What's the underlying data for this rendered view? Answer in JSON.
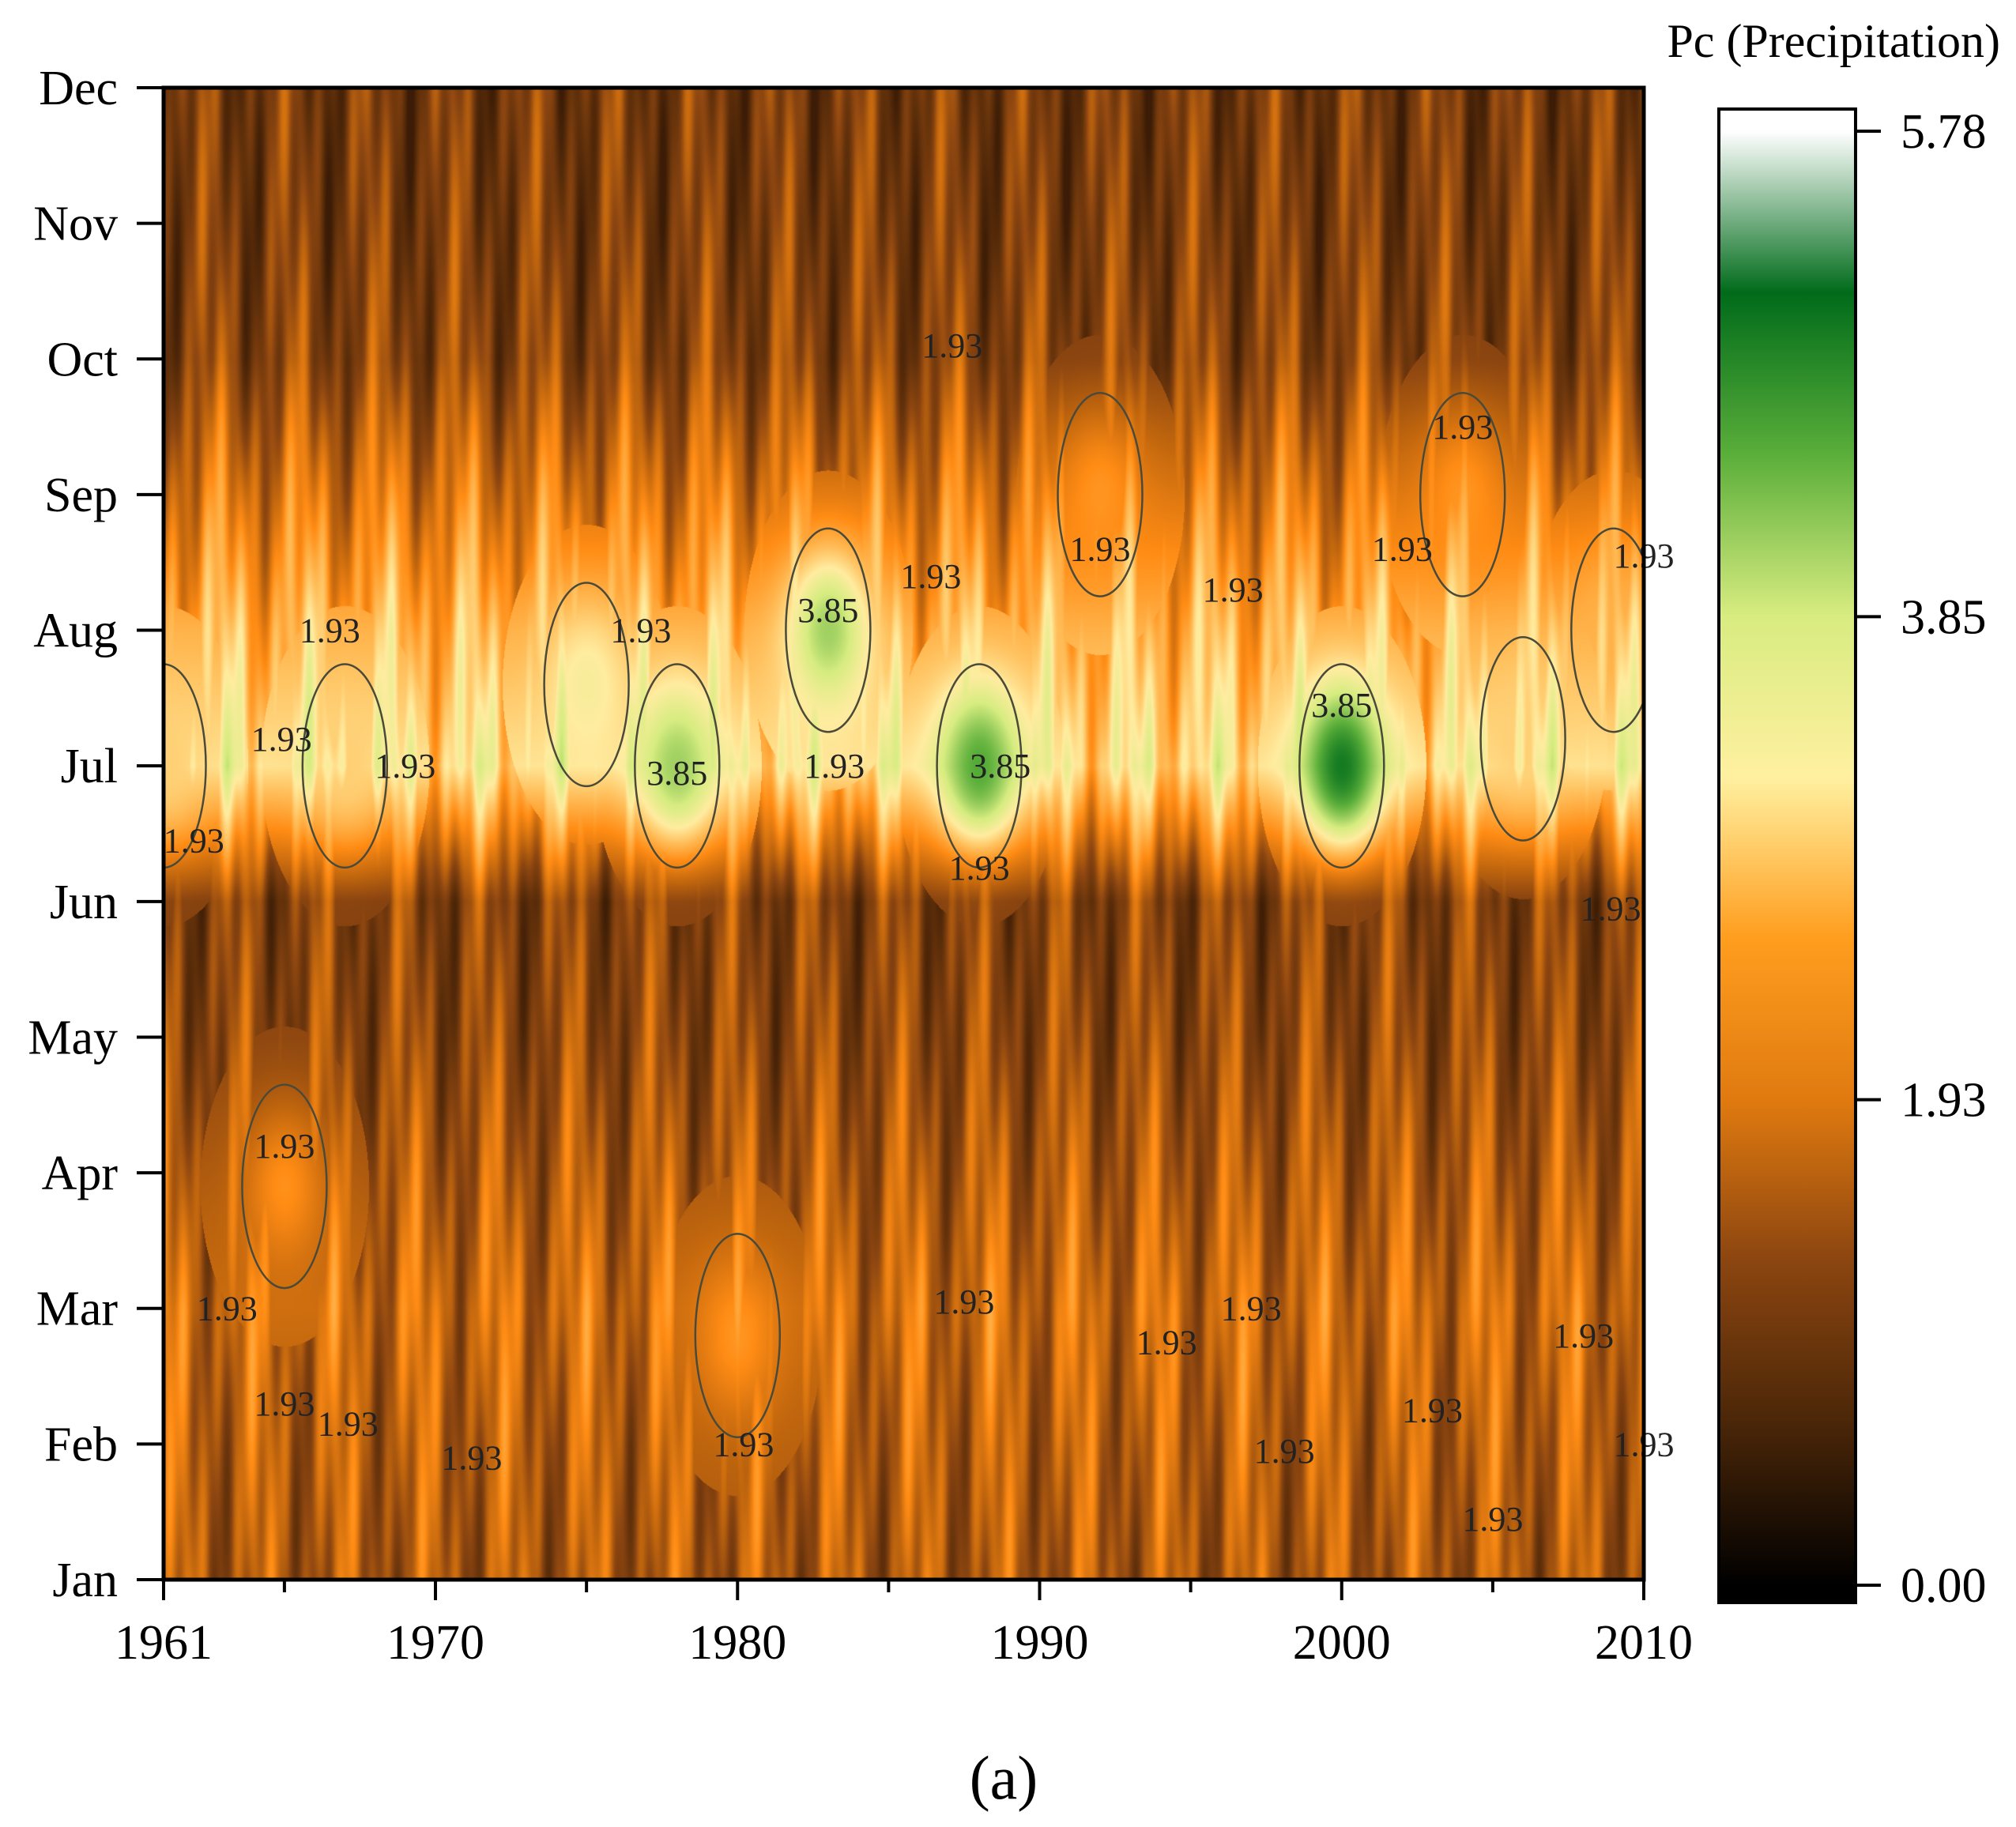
{
  "chart_data": {
    "type": "heatmap",
    "title": "",
    "xlabel": "",
    "ylabel": "",
    "panel_label": "(a)",
    "x_range": [
      1961,
      2010
    ],
    "x_ticks": [
      "1961",
      "1970",
      "1980",
      "1990",
      "2000",
      "2010"
    ],
    "y_ticks": [
      "Jan",
      "Feb",
      "Mar",
      "Apr",
      "May",
      "Jun",
      "Jul",
      "Aug",
      "Sep",
      "Oct",
      "Nov",
      "Dec"
    ],
    "colorbar": {
      "title": "Pc (Precipitation)",
      "min": 0.0,
      "max": 5.78,
      "ticks": [
        "0.00",
        "1.93",
        "3.85",
        "5.78"
      ],
      "colors": [
        "#000000",
        "#4a2608",
        "#8b4510",
        "#e07a10",
        "#ff9d1e",
        "#fff0a0",
        "#d8ec80",
        "#5aae3a",
        "#006b1a",
        "#ffffff"
      ]
    },
    "contour_levels": [
      1.93,
      3.85
    ],
    "monthly_profile": [
      1.2,
      1.3,
      1.45,
      1.2,
      0.95,
      0.85,
      2.8,
      2.3,
      1.6,
      0.9,
      0.75,
      0.7
    ],
    "hotspots": [
      {
        "year": 1978,
        "month": 7,
        "value": 3.85
      },
      {
        "year": 1983,
        "month": 8,
        "value": 3.85
      },
      {
        "year": 1988,
        "month": 7,
        "value": 4.4
      },
      {
        "year": 2000,
        "month": 7,
        "value": 5.0
      },
      {
        "year": 1975,
        "month": 7.6,
        "value": 3.0
      },
      {
        "year": 1961,
        "month": 7,
        "value": 2.6
      },
      {
        "year": 1967,
        "month": 7,
        "value": 2.6
      },
      {
        "year": 1980,
        "month": 2.8,
        "value": 2.0
      },
      {
        "year": 1965,
        "month": 3.9,
        "value": 1.95
      },
      {
        "year": 1992,
        "month": 9,
        "value": 2.0
      },
      {
        "year": 2004,
        "month": 9,
        "value": 2.0
      },
      {
        "year": 2006,
        "month": 7.2,
        "value": 2.6
      },
      {
        "year": 2009,
        "month": 8,
        "value": 2.3
      }
    ],
    "annotations": [
      {
        "text": "1.93",
        "year": 1962,
        "month": 6.45
      },
      {
        "text": "1.93",
        "year": 1964.9,
        "month": 7.2
      },
      {
        "text": "1.93",
        "year": 1966.5,
        "month": 8.0
      },
      {
        "text": "1.93",
        "year": 1969,
        "month": 7.0
      },
      {
        "text": "1.93",
        "year": 1976.8,
        "month": 8.0
      },
      {
        "text": "3.85",
        "year": 1978,
        "month": 6.95
      },
      {
        "text": "1.93",
        "year": 1983.2,
        "month": 7.0
      },
      {
        "text": "3.85",
        "year": 1983,
        "month": 8.15
      },
      {
        "text": "1.93",
        "year": 1986.4,
        "month": 8.4
      },
      {
        "text": "1.93",
        "year": 1987.1,
        "month": 10.1
      },
      {
        "text": "3.85",
        "year": 1988.7,
        "month": 7.0
      },
      {
        "text": "1.93",
        "year": 1988,
        "month": 6.25
      },
      {
        "text": "1.93",
        "year": 1992,
        "month": 8.6
      },
      {
        "text": "1.93",
        "year": 1996.4,
        "month": 8.3
      },
      {
        "text": "3.85",
        "year": 2000,
        "month": 7.45
      },
      {
        "text": "1.93",
        "year": 2002,
        "month": 8.6
      },
      {
        "text": "1.93",
        "year": 2004,
        "month": 9.5
      },
      {
        "text": "1.93",
        "year": 2008.9,
        "month": 5.95
      },
      {
        "text": "1.93",
        "year": 2010,
        "month": 8.55
      },
      {
        "text": "1.93",
        "year": 1965,
        "month": 4.2
      },
      {
        "text": "1.93",
        "year": 1963.1,
        "month": 3.0
      },
      {
        "text": "1.93",
        "year": 1987.5,
        "month": 3.05
      },
      {
        "text": "1.93",
        "year": 1994.2,
        "month": 2.75
      },
      {
        "text": "1.93",
        "year": 1997,
        "month": 3.0
      },
      {
        "text": "1.93",
        "year": 2008,
        "month": 2.8
      },
      {
        "text": "1.93",
        "year": 1965,
        "month": 2.3
      },
      {
        "text": "1.93",
        "year": 1967.1,
        "month": 2.15
      },
      {
        "text": "1.93",
        "year": 1971.2,
        "month": 1.9
      },
      {
        "text": "1.93",
        "year": 1980.2,
        "month": 2.0
      },
      {
        "text": "1.93",
        "year": 1998.1,
        "month": 1.95
      },
      {
        "text": "1.93",
        "year": 2003,
        "month": 2.25
      },
      {
        "text": "1.93",
        "year": 2005,
        "month": 1.45
      },
      {
        "text": "1.93",
        "year": 2010,
        "month": 2.0
      }
    ]
  }
}
